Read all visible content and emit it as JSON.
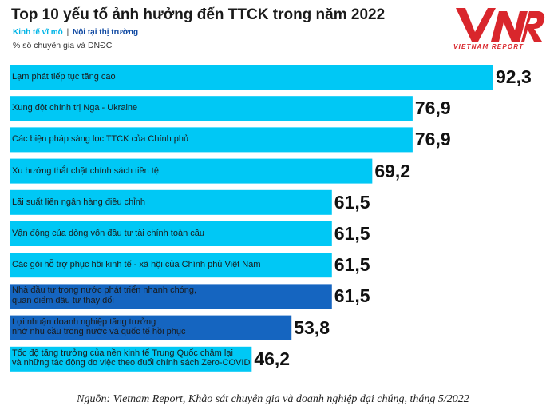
{
  "header": {
    "title": "Top 10 yếu tố ảnh hưởng đến TTCK trong năm 2022",
    "legend_macro": "Kinh tế vĩ mô",
    "legend_separator": "|",
    "legend_internal": "Nội tại thị trường",
    "unit": "% số chuyên gia và DNĐC"
  },
  "logo": {
    "text": "VNR",
    "caption": "VIETNAM REPORT"
  },
  "colors": {
    "macro": "#00c8f5",
    "internal": "#1565c0",
    "legend_macro": "#00b4e6",
    "legend_internal": "#0d47a1",
    "logo_red": "#d9262c"
  },
  "chart_data": {
    "type": "bar",
    "orientation": "horizontal",
    "title": "Top 10 yếu tố ảnh hưởng đến TTCK trong năm 2022",
    "subtitle": "% số chuyên gia và DNĐC",
    "xlim": [
      0,
      92.3
    ],
    "grid": false,
    "legend": [
      "Kinh tế vĩ mô",
      "Nội tại thị trường"
    ],
    "categories": [
      "Lạm phát tiếp tục tăng cao",
      "Xung đột chính trị Nga - Ukraine",
      "Các biện pháp sàng lọc TTCK của Chính phủ",
      "Xu hướng thắt chặt chính sách tiền tệ",
      "Lãi suất liên ngân hàng điều chỉnh",
      "Vận động của dòng vốn đầu tư tài chính toàn cầu",
      "Các gói hỗ trợ phục hồi kinh tế - xã hội của Chính phủ Việt Nam",
      "Nhà đầu tư trong nước phát triển nhanh chóng, quan điểm đầu tư thay đổi",
      "Lợi nhuận doanh nghiệp tăng trưởng nhờ nhu cầu trong nước và quốc tế hồi phục",
      "Tốc độ tăng trưởng của nền kinh tế Trung Quốc chậm lại và những tác động do việc theo đuổi chính sách Zero-COVID"
    ],
    "values": [
      92.3,
      76.9,
      76.9,
      69.2,
      61.5,
      61.5,
      61.5,
      61.5,
      53.8,
      46.2
    ],
    "value_labels": [
      "92,3",
      "76,9",
      "76,9",
      "69,2",
      "61,5",
      "61,5",
      "61,5",
      "61,5",
      "53,8",
      "46,2"
    ],
    "groups": [
      "macro",
      "macro",
      "macro",
      "macro",
      "macro",
      "macro",
      "macro",
      "internal",
      "internal",
      "macro"
    ],
    "label_lines": [
      [
        "Lạm phát tiếp tục tăng cao"
      ],
      [
        "Xung đột chính trị Nga - Ukraine"
      ],
      [
        "Các biện pháp sàng lọc TTCK của Chính phủ"
      ],
      [
        "Xu hướng thắt chặt chính sách tiền tệ"
      ],
      [
        "Lãi suất liên ngân hàng điều chỉnh"
      ],
      [
        "Vận động của dòng vốn đầu tư tài chính toàn cầu"
      ],
      [
        "Các gói hỗ trợ phục hồi kinh tế - xã hội của Chính phủ Việt Nam"
      ],
      [
        "Nhà đầu tư trong nước phát triển nhanh chóng,",
        "quan điểm đầu tư thay đổi"
      ],
      [
        "Lợi nhuận doanh nghiệp tăng trưởng",
        "nhờ nhu cầu trong nước và quốc tế hồi phục"
      ],
      [
        "Tốc độ tăng trưởng của nền kinh tế Trung Quốc chậm lại",
        "và những tác động do việc theo đuổi chính sách Zero-COVID"
      ]
    ]
  },
  "source": "Nguồn: Vietnam Report, Khảo sát chuyên gia và doanh nghiệp đại chúng, tháng 5/2022"
}
